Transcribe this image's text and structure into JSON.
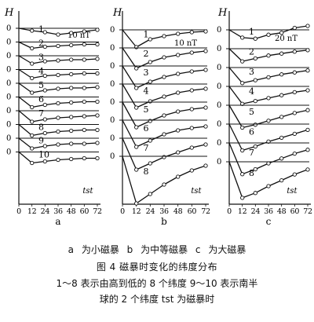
{
  "figure": {
    "caption_panels": "a 为小磁暴   b 为中等磁暴   c 为大磁暴",
    "caption_title": "图 4   磁暴时变化的纬度分布",
    "caption_line3": "1～8 表示由高到低的 8 个纬度   9～10 表示南半",
    "caption_line4": "球的 2 个纬度   tst 为磁暴时"
  },
  "chart_data": [
    {
      "panel": "a",
      "type": "line",
      "ylabel": "H",
      "xlabel": "tst",
      "scale_label": "10 nT",
      "x_ticks": [
        "0",
        "12",
        "24",
        "36",
        "48",
        "60",
        "72"
      ],
      "series": [
        {
          "name": "1",
          "x": [
            0,
            12,
            24,
            36,
            48,
            60,
            72
          ],
          "values": [
            0,
            -3,
            -5,
            -8,
            -6,
            -4,
            -2
          ]
        },
        {
          "name": "2",
          "x": [
            0,
            12,
            24,
            36,
            48,
            60,
            72
          ],
          "values": [
            0,
            -8,
            -6,
            -5,
            -4,
            -3,
            -3
          ]
        },
        {
          "name": "3",
          "x": [
            0,
            12,
            24,
            36,
            48,
            60,
            72
          ],
          "values": [
            0,
            -10,
            -7,
            -6,
            -5,
            -5,
            -4
          ]
        },
        {
          "name": "4",
          "x": [
            0,
            12,
            24,
            36,
            48,
            60,
            72
          ],
          "values": [
            0,
            -11,
            -8,
            -7,
            -6,
            -5,
            -5
          ]
        },
        {
          "name": "5",
          "x": [
            0,
            12,
            24,
            36,
            48,
            60,
            72
          ],
          "values": [
            0,
            -12,
            -9,
            -7,
            -6,
            -6,
            -5
          ]
        },
        {
          "name": "6",
          "x": [
            0,
            12,
            24,
            36,
            48,
            60,
            72
          ],
          "values": [
            0,
            -13,
            -10,
            -8,
            -7,
            -6,
            -6
          ]
        },
        {
          "name": "7",
          "x": [
            0,
            12,
            24,
            36,
            48,
            60,
            72
          ],
          "values": [
            0,
            -14,
            -11,
            -9,
            -8,
            -7,
            -6
          ]
        },
        {
          "name": "8",
          "x": [
            0,
            12,
            24,
            36,
            48,
            60,
            72
          ],
          "values": [
            0,
            -14,
            -11,
            -9,
            -8,
            -7,
            -7
          ]
        },
        {
          "name": "9",
          "x": [
            0,
            12,
            24,
            36,
            48,
            60,
            72
          ],
          "values": [
            0,
            -13,
            -10,
            -8,
            -7,
            -7,
            -6
          ]
        },
        {
          "name": "10",
          "x": [
            0,
            12,
            24,
            36,
            48,
            60,
            72
          ],
          "values": [
            0,
            -14,
            -12,
            -10,
            -9,
            -8,
            -8
          ]
        }
      ]
    },
    {
      "panel": "b",
      "type": "line",
      "ylabel": "H",
      "xlabel": "tst",
      "scale_label": "10 nT",
      "x_ticks": [
        "0",
        "12",
        "24",
        "36",
        "48",
        "60",
        "72"
      ],
      "series": [
        {
          "name": "1",
          "x": [
            0,
            12,
            24,
            36,
            48,
            60,
            72
          ],
          "values": [
            0,
            -22,
            -12,
            -8,
            -5,
            -3,
            -2
          ]
        },
        {
          "name": "2",
          "x": [
            0,
            12,
            24,
            36,
            48,
            60,
            72
          ],
          "values": [
            0,
            -26,
            -18,
            -12,
            -9,
            -6,
            -4
          ]
        },
        {
          "name": "3",
          "x": [
            0,
            12,
            24,
            36,
            48,
            60,
            72
          ],
          "values": [
            0,
            -28,
            -20,
            -14,
            -10,
            -7,
            -5
          ]
        },
        {
          "name": "4",
          "x": [
            0,
            12,
            24,
            36,
            48,
            60,
            72
          ],
          "values": [
            0,
            -30,
            -22,
            -16,
            -11,
            -8,
            -6
          ]
        },
        {
          "name": "5",
          "x": [
            0,
            12,
            24,
            36,
            48,
            60,
            72
          ],
          "values": [
            0,
            -32,
            -24,
            -17,
            -12,
            -9,
            -7
          ]
        },
        {
          "name": "6",
          "x": [
            0,
            12,
            24,
            36,
            48,
            60,
            72
          ],
          "values": [
            0,
            -34,
            -26,
            -18,
            -13,
            -10,
            -8
          ]
        },
        {
          "name": "7",
          "x": [
            0,
            12,
            24,
            36,
            48,
            60,
            72
          ],
          "values": [
            0,
            -40,
            -32,
            -24,
            -18,
            -12,
            -8
          ]
        },
        {
          "name": "8",
          "x": [
            0,
            12,
            24,
            36,
            48,
            60,
            72
          ],
          "values": [
            0,
            -60,
            -48,
            -36,
            -26,
            -18,
            -12
          ]
        }
      ]
    },
    {
      "panel": "c",
      "type": "line",
      "ylabel": "H",
      "xlabel": "tst",
      "scale_label": "20 nT",
      "x_ticks": [
        "0",
        "12",
        "24",
        "36",
        "48",
        "60",
        "72"
      ],
      "series": [
        {
          "name": "1",
          "x": [
            0,
            12,
            24,
            36,
            48,
            60,
            72
          ],
          "values": [
            0,
            -16,
            -18,
            -10,
            -6,
            4,
            8
          ]
        },
        {
          "name": "2",
          "x": [
            0,
            12,
            24,
            36,
            48,
            60,
            72
          ],
          "values": [
            0,
            -26,
            -20,
            -14,
            -10,
            -6,
            -3
          ]
        },
        {
          "name": "3",
          "x": [
            0,
            12,
            24,
            36,
            48,
            60,
            72
          ],
          "values": [
            0,
            -32,
            -26,
            -20,
            -14,
            -10,
            -6
          ]
        },
        {
          "name": "4",
          "x": [
            0,
            12,
            24,
            36,
            48,
            60,
            72
          ],
          "values": [
            0,
            -36,
            -30,
            -24,
            -18,
            -12,
            -8
          ]
        },
        {
          "name": "5",
          "x": [
            0,
            12,
            24,
            36,
            48,
            60,
            72
          ],
          "values": [
            0,
            -46,
            -40,
            -32,
            -24,
            -16,
            -10
          ]
        },
        {
          "name": "6",
          "x": [
            0,
            12,
            24,
            36,
            48,
            60,
            72
          ],
          "values": [
            0,
            -54,
            -46,
            -36,
            -28,
            -20,
            -12
          ]
        },
        {
          "name": "7",
          "x": [
            0,
            12,
            24,
            36,
            48,
            60,
            72
          ],
          "values": [
            0,
            -64,
            -54,
            -42,
            -32,
            -22,
            -14
          ]
        },
        {
          "name": "8",
          "x": [
            0,
            12,
            24,
            36,
            48,
            60,
            72
          ],
          "values": [
            0,
            -74,
            -64,
            -50,
            -38,
            -26,
            -16
          ]
        }
      ]
    }
  ]
}
